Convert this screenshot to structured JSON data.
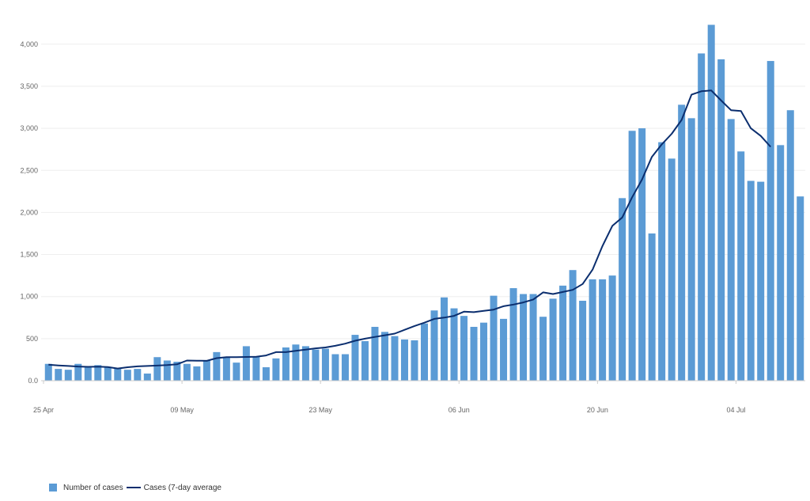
{
  "chart_data": {
    "type": "bar",
    "title": "",
    "xlabel": "",
    "ylabel": "",
    "x_start": "25 Apr",
    "x_tick_labels": [
      "25 Apr",
      "09 May",
      "23 May",
      "06 Jun",
      "20 Jun",
      "04 Jul"
    ],
    "y_ticks": [
      "0.0",
      "500",
      "1,000",
      "1,500",
      "2,000",
      "2,500",
      "3,000",
      "3,500",
      "4,000"
    ],
    "ylim": [
      0,
      4300
    ],
    "grid": true,
    "legend_position": "bottom-left",
    "colors": {
      "bars": "#5b9bd5",
      "line": "#0b2e6e",
      "grid": "#eeeeee",
      "axis": "#cccccc"
    },
    "series": [
      {
        "name": "Number of cases",
        "type": "bar",
        "values": [
          200,
          140,
          130,
          200,
          170,
          185,
          165,
          145,
          130,
          140,
          85,
          280,
          240,
          225,
          200,
          170,
          240,
          340,
          280,
          215,
          410,
          290,
          160,
          265,
          395,
          430,
          410,
          370,
          380,
          315,
          315,
          545,
          470,
          640,
          580,
          530,
          490,
          480,
          680,
          835,
          990,
          860,
          770,
          640,
          690,
          1010,
          735,
          1100,
          1030,
          1030,
          760,
          975,
          1130,
          1315,
          950,
          1205,
          1205,
          1250,
          2170,
          2970,
          3000,
          1750,
          2835,
          2640,
          3280,
          3120,
          3890,
          4230,
          3820,
          3110,
          2725,
          2375,
          2365,
          3800,
          2800,
          3215,
          2190
        ]
      },
      {
        "name": "Cases (7-day average",
        "type": "line",
        "values": [
          190,
          182,
          175,
          168,
          165,
          167,
          163,
          145,
          160,
          170,
          175,
          180,
          185,
          195,
          240,
          238,
          236,
          268,
          280,
          280,
          282,
          285,
          300,
          340,
          340,
          355,
          370,
          385,
          395,
          415,
          440,
          475,
          500,
          520,
          540,
          560,
          605,
          650,
          690,
          735,
          750,
          770,
          820,
          815,
          830,
          845,
          885,
          905,
          930,
          965,
          1050,
          1030,
          1055,
          1080,
          1150,
          1320,
          1600,
          1840,
          1940,
          2180,
          2390,
          2660,
          2810,
          2935,
          3100,
          3400,
          3440,
          3450,
          3330,
          3215,
          3205,
          3000,
          2910,
          2780
        ]
      }
    ]
  }
}
